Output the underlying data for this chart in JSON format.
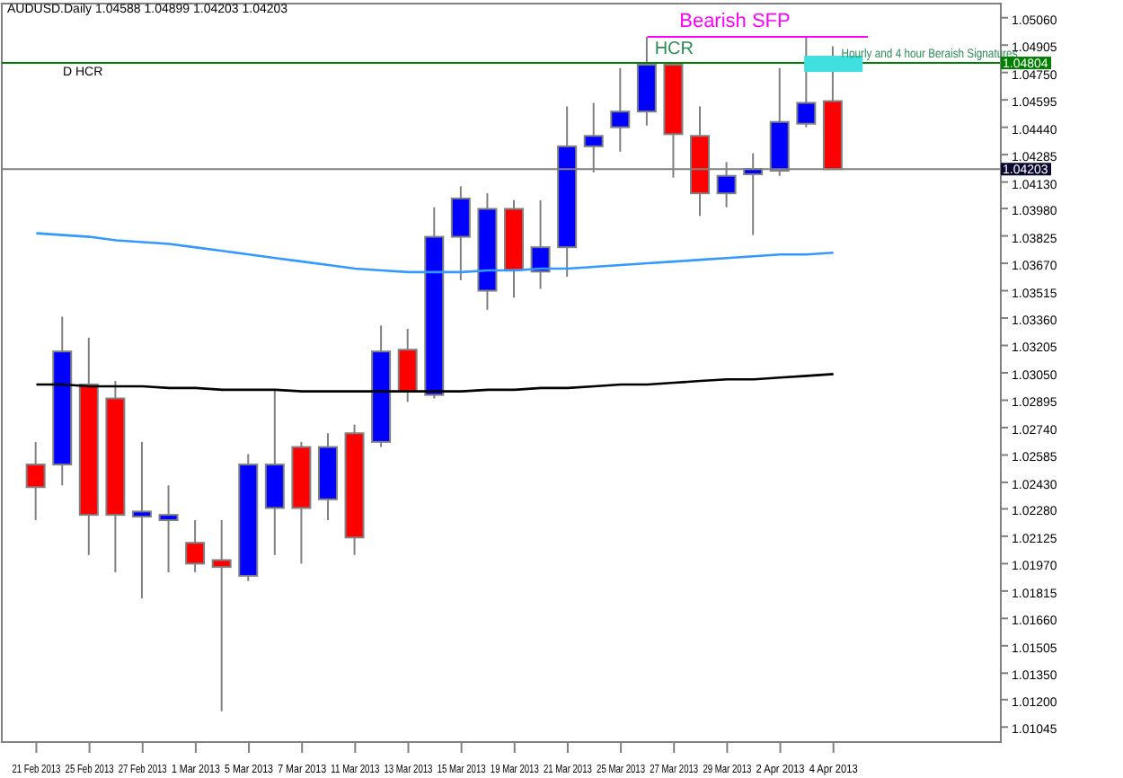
{
  "chart_data": {
    "type": "candlestick",
    "title": "AUDUSD.Daily 1.04588 1.04899 1.04203 1.04203",
    "categories": [
      "21 Feb 2013",
      null,
      "25 Feb 2013",
      null,
      "27 Feb 2013",
      null,
      "1 Mar 2013",
      null,
      "5 Mar 2013",
      null,
      "7 Mar 2013",
      null,
      "11 Mar 2013",
      null,
      "13 Mar 2013",
      null,
      "15 Mar 2013",
      null,
      "19 Mar 2013",
      null,
      "21 Mar 2013",
      null,
      "25 Mar 2013",
      null,
      "27 Mar 2013",
      null,
      "29 Mar 2013",
      null,
      "2 Apr 2013",
      null,
      "4 Apr 2013"
    ],
    "ohlc": [
      [
        1.02531,
        1.02659,
        1.02216,
        1.02403
      ],
      [
        1.02531,
        1.03368,
        1.02413,
        1.03171
      ],
      [
        1.02984,
        1.03249,
        1.02019,
        1.02246
      ],
      [
        1.02905,
        1.03004,
        1.01921,
        1.02246
      ],
      [
        1.02236,
        1.02659,
        1.01773,
        1.02265
      ],
      [
        1.02216,
        1.02413,
        1.01921,
        1.02246
      ],
      [
        1.02088,
        1.02216,
        1.01921,
        1.0197
      ],
      [
        1.0199,
        1.02216,
        1.01134,
        1.01951
      ],
      [
        1.01901,
        1.0259,
        1.01872,
        1.02531
      ],
      [
        1.02285,
        1.02954,
        1.02019,
        1.02531
      ],
      [
        1.0263,
        1.02659,
        1.0197,
        1.02285
      ],
      [
        1.02334,
        1.02708,
        1.02216,
        1.0263
      ],
      [
        1.02708,
        1.02757,
        1.02019,
        1.02118
      ],
      [
        1.02659,
        1.03318,
        1.0263,
        1.03171
      ],
      [
        1.03181,
        1.03299,
        1.02885,
        1.02945
      ],
      [
        1.02925,
        1.03987,
        1.02905,
        1.0382
      ],
      [
        1.0382,
        1.04106,
        1.03574,
        1.04037
      ],
      [
        1.03515,
        1.04066,
        1.03407,
        1.03978
      ],
      [
        1.03978,
        1.04027,
        1.03476,
        1.03633
      ],
      [
        1.03623,
        1.04027,
        1.03525,
        1.03761
      ],
      [
        1.03761,
        1.04558,
        1.03594,
        1.04332
      ],
      [
        1.04332,
        1.04578,
        1.04184,
        1.04391
      ],
      [
        1.0444,
        1.04775,
        1.04302,
        1.04529
      ],
      [
        1.04529,
        1.04952,
        1.0445,
        1.04794
      ],
      [
        1.04794,
        1.04794,
        1.04155,
        1.04401
      ],
      [
        1.04391,
        1.04558,
        1.03938,
        1.04066
      ],
      [
        1.04066,
        1.04243,
        1.03987,
        1.04165
      ],
      [
        1.04174,
        1.04293,
        1.0383,
        1.04204
      ],
      [
        1.04194,
        1.04775,
        1.04165,
        1.0447
      ],
      [
        1.0446,
        1.04952,
        1.0444,
        1.04578
      ],
      [
        1.04588,
        1.04899,
        1.04203,
        1.04203
      ]
    ],
    "colors": [
      "#ff0000",
      "#0000ff",
      "#ff0000",
      "#ff0000",
      "#0000ff",
      "#0000ff",
      "#ff0000",
      "#ff0000",
      "#0000ff",
      "#0000ff",
      "#ff0000",
      "#0000ff",
      "#ff0000",
      "#0000ff",
      "#ff0000",
      "#0000ff",
      "#0000ff",
      "#0000ff",
      "#ff0000",
      "#0000ff",
      "#0000ff",
      "#0000ff",
      "#0000ff",
      "#0000ff",
      "#ff0000",
      "#ff0000",
      "#0000ff",
      "#0000ff",
      "#0000ff",
      "#0000ff",
      "#ff0000"
    ],
    "series": [
      {
        "type": "line",
        "color": "#3399ff",
        "values": [
          1.0384,
          1.0383,
          1.0382,
          1.038,
          1.0379,
          1.0378,
          1.0376,
          1.0374,
          1.0372,
          1.037,
          1.0368,
          1.0366,
          1.0364,
          1.0363,
          1.0362,
          1.0362,
          1.0362,
          1.0363,
          1.0363,
          1.0364,
          1.0364,
          1.0365,
          1.0366,
          1.0367,
          1.0368,
          1.0369,
          1.037,
          1.0371,
          1.0372,
          1.0372,
          1.0373
        ]
      },
      {
        "type": "line",
        "color": "#000000",
        "values": [
          1.02984,
          1.02984,
          1.02974,
          1.02974,
          1.02974,
          1.02964,
          1.02964,
          1.02954,
          1.02954,
          1.02954,
          1.02945,
          1.02945,
          1.02945,
          1.02945,
          1.02945,
          1.02945,
          1.02945,
          1.02954,
          1.02954,
          1.02964,
          1.02964,
          1.02974,
          1.02984,
          1.02984,
          1.02994,
          1.03004,
          1.03013,
          1.03013,
          1.03023,
          1.03033,
          1.03043
        ]
      }
    ],
    "ylim": [
      1.0096,
      1.0514
    ],
    "yticks": [
      {
        "value": 1.0506,
        "label": "1.05060"
      },
      {
        "value": 1.04905,
        "label": "1.04905"
      },
      {
        "value": 1.0475,
        "label": "1.04750"
      },
      {
        "value": 1.04595,
        "label": "1.04595"
      },
      {
        "value": 1.0444,
        "label": "1.04440"
      },
      {
        "value": 1.04285,
        "label": "1.04285"
      },
      {
        "value": 1.0413,
        "label": "1.04130"
      },
      {
        "value": 1.0398,
        "label": "1.03980"
      },
      {
        "value": 1.03825,
        "label": "1.03825"
      },
      {
        "value": 1.0367,
        "label": "1.03670"
      },
      {
        "value": 1.03515,
        "label": "1.03515"
      },
      {
        "value": 1.0336,
        "label": "1.03360"
      },
      {
        "value": 1.03205,
        "label": "1.03205"
      },
      {
        "value": 1.0305,
        "label": "1.03050"
      },
      {
        "value": 1.02895,
        "label": "1.02895"
      },
      {
        "value": 1.0274,
        "label": "1.02740"
      },
      {
        "value": 1.02585,
        "label": "1.02585"
      },
      {
        "value": 1.0243,
        "label": "1.02430"
      },
      {
        "value": 1.0228,
        "label": "1.02280"
      },
      {
        "value": 1.02125,
        "label": "1.02125"
      },
      {
        "value": 1.0197,
        "label": "1.01970"
      },
      {
        "value": 1.01815,
        "label": "1.01815"
      },
      {
        "value": 1.0166,
        "label": "1.01660"
      },
      {
        "value": 1.01505,
        "label": "1.01505"
      },
      {
        "value": 1.0135,
        "label": "1.01350"
      },
      {
        "value": 1.012,
        "label": "1.01200"
      },
      {
        "value": 1.01045,
        "label": "1.01045"
      }
    ],
    "ref_lines": [
      {
        "axis": "y",
        "value": 1.04804,
        "label": "D HCR",
        "color": "#008000"
      },
      {
        "axis": "y",
        "value": 1.04203,
        "color": "#808080"
      }
    ],
    "annotations": [
      "HCR",
      "Bearish SFP",
      "Hourly and 4 hour Beraish Signatures",
      "1.04804",
      "1.04203"
    ]
  }
}
